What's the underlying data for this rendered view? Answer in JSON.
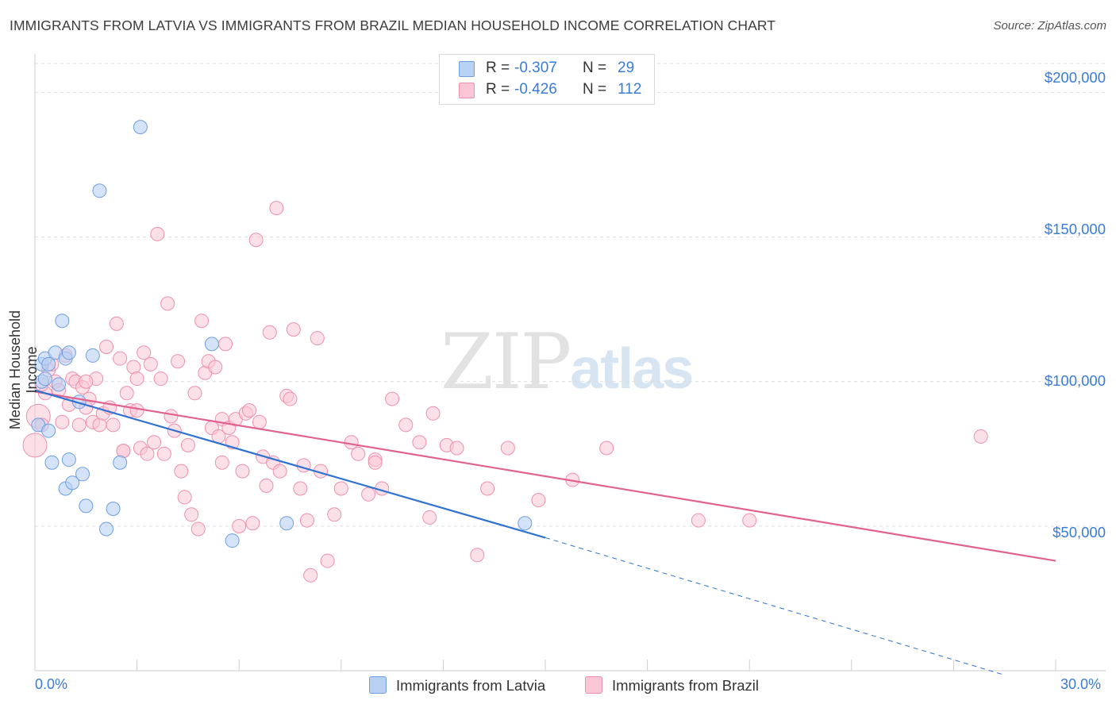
{
  "title": "IMMIGRANTS FROM LATVIA VS IMMIGRANTS FROM BRAZIL MEDIAN HOUSEHOLD INCOME CORRELATION CHART",
  "source": "Source: ZipAtlas.com",
  "watermark": {
    "zip": "ZIP",
    "atlas": "atlas"
  },
  "legend": {
    "latvia": {
      "r_label": "R = ",
      "r_value": "-0.307",
      "n_label": "N = ",
      "n_value": "29"
    },
    "brazil": {
      "r_label": "R = ",
      "r_value": "-0.426",
      "n_label": "N = ",
      "n_value": "112"
    }
  },
  "colors": {
    "latvia_fill": "#b8d1f3",
    "latvia_stroke": "#6e9fe0",
    "latvia_line": "#2f72d0",
    "brazil_fill": "#f9c6d6",
    "brazil_stroke": "#ee8fae",
    "brazil_line": "#e2628f",
    "tick_text": "#3a7bd5",
    "grid": "#dddddd"
  },
  "chart_data": {
    "type": "scatter",
    "title": "IMMIGRANTS FROM LATVIA VS IMMIGRANTS FROM BRAZIL MEDIAN HOUSEHOLD INCOME CORRELATION CHART",
    "xlabel": "",
    "ylabel": "Median Household Income",
    "xlim": [
      0,
      30
    ],
    "ylim": [
      0,
      210000
    ],
    "x_tick_labels": [
      "0.0%",
      "30.0%"
    ],
    "y_ticks": [
      {
        "value": 50000,
        "label": "$50,000"
      },
      {
        "value": 100000,
        "label": "$100,000"
      },
      {
        "value": 150000,
        "label": "$150,000"
      },
      {
        "value": 200000,
        "label": "$200,000"
      }
    ],
    "grid": true,
    "legend_position": "top-center",
    "series": [
      {
        "name": "Immigrants from Latvia",
        "points": [
          [
            0.1,
            85000
          ],
          [
            0.2,
            106000
          ],
          [
            0.2,
            100000
          ],
          [
            0.3,
            108000
          ],
          [
            0.4,
            106000
          ],
          [
            0.4,
            83000
          ],
          [
            0.5,
            72000
          ],
          [
            0.6,
            110000
          ],
          [
            0.7,
            99000
          ],
          [
            0.8,
            121000
          ],
          [
            0.9,
            108000
          ],
          [
            0.9,
            63000
          ],
          [
            1.0,
            110000
          ],
          [
            1.0,
            73000
          ],
          [
            1.1,
            65000
          ],
          [
            1.3,
            93000
          ],
          [
            1.4,
            68000
          ],
          [
            1.5,
            57000
          ],
          [
            1.7,
            109000
          ],
          [
            1.9,
            166000
          ],
          [
            2.1,
            49000
          ],
          [
            2.3,
            56000
          ],
          [
            2.5,
            72000
          ],
          [
            3.1,
            188000
          ],
          [
            5.2,
            113000
          ],
          [
            5.8,
            45000
          ],
          [
            7.4,
            51000
          ],
          [
            14.4,
            51000
          ],
          [
            0.3,
            101000
          ]
        ],
        "trend": {
          "x1": 0,
          "y1": 97000,
          "x2": 15.0,
          "y2": 46000,
          "dashed_to_x": 28.5,
          "dashed_to_y": -1500
        }
      },
      {
        "name": "Immigrants from Brazil",
        "points": [
          [
            0.0,
            78000
          ],
          [
            0.1,
            88000
          ],
          [
            0.2,
            85000
          ],
          [
            0.3,
            96000
          ],
          [
            0.4,
            104000
          ],
          [
            0.5,
            106000
          ],
          [
            0.6,
            100000
          ],
          [
            0.7,
            97000
          ],
          [
            0.8,
            86000
          ],
          [
            0.9,
            109000
          ],
          [
            1.0,
            92000
          ],
          [
            1.1,
            101000
          ],
          [
            1.2,
            100000
          ],
          [
            1.3,
            85000
          ],
          [
            1.4,
            98000
          ],
          [
            1.5,
            91000
          ],
          [
            1.6,
            94000
          ],
          [
            1.7,
            86000
          ],
          [
            1.8,
            101000
          ],
          [
            1.9,
            85000
          ],
          [
            2.0,
            89000
          ],
          [
            2.1,
            112000
          ],
          [
            2.2,
            91000
          ],
          [
            2.3,
            85000
          ],
          [
            2.4,
            120000
          ],
          [
            2.5,
            108000
          ],
          [
            2.6,
            76000
          ],
          [
            2.7,
            96000
          ],
          [
            2.8,
            90000
          ],
          [
            2.9,
            105000
          ],
          [
            3.0,
            101000
          ],
          [
            3.1,
            77000
          ],
          [
            3.2,
            110000
          ],
          [
            3.3,
            75000
          ],
          [
            3.4,
            106000
          ],
          [
            3.5,
            79000
          ],
          [
            3.6,
            151000
          ],
          [
            3.7,
            101000
          ],
          [
            3.8,
            75000
          ],
          [
            3.9,
            127000
          ],
          [
            4.0,
            88000
          ],
          [
            4.1,
            83000
          ],
          [
            4.2,
            107000
          ],
          [
            4.3,
            69000
          ],
          [
            4.4,
            60000
          ],
          [
            4.5,
            78000
          ],
          [
            4.6,
            54000
          ],
          [
            4.7,
            96000
          ],
          [
            4.8,
            49000
          ],
          [
            4.9,
            121000
          ],
          [
            5.0,
            103000
          ],
          [
            5.1,
            107000
          ],
          [
            5.2,
            84000
          ],
          [
            5.3,
            105000
          ],
          [
            5.4,
            81000
          ],
          [
            5.5,
            87000
          ],
          [
            5.6,
            113000
          ],
          [
            5.7,
            84000
          ],
          [
            5.8,
            79000
          ],
          [
            5.9,
            87000
          ],
          [
            6.0,
            50000
          ],
          [
            6.1,
            69000
          ],
          [
            6.2,
            89000
          ],
          [
            6.3,
            90000
          ],
          [
            6.4,
            51000
          ],
          [
            6.5,
            149000
          ],
          [
            6.6,
            86000
          ],
          [
            6.7,
            74000
          ],
          [
            6.8,
            64000
          ],
          [
            6.9,
            117000
          ],
          [
            7.0,
            72000
          ],
          [
            7.1,
            160000
          ],
          [
            7.2,
            69000
          ],
          [
            7.4,
            95000
          ],
          [
            7.5,
            94000
          ],
          [
            7.6,
            118000
          ],
          [
            7.8,
            63000
          ],
          [
            7.9,
            71000
          ],
          [
            8.0,
            52000
          ],
          [
            8.1,
            33000
          ],
          [
            8.3,
            115000
          ],
          [
            8.4,
            69000
          ],
          [
            8.6,
            38000
          ],
          [
            8.8,
            54000
          ],
          [
            9.0,
            63000
          ],
          [
            9.3,
            79000
          ],
          [
            9.8,
            61000
          ],
          [
            10.0,
            73000
          ],
          [
            10.2,
            63000
          ],
          [
            10.5,
            94000
          ],
          [
            10.9,
            85000
          ],
          [
            11.3,
            79000
          ],
          [
            11.6,
            53000
          ],
          [
            11.7,
            89000
          ],
          [
            12.1,
            78000
          ],
          [
            12.4,
            77000
          ],
          [
            13.0,
            40000
          ],
          [
            13.3,
            63000
          ],
          [
            13.9,
            77000
          ],
          [
            14.8,
            59000
          ],
          [
            15.8,
            66000
          ],
          [
            16.8,
            77000
          ],
          [
            19.5,
            52000
          ],
          [
            21.0,
            52000
          ],
          [
            27.8,
            81000
          ],
          [
            10.0,
            72000
          ],
          [
            0.2,
            99000
          ],
          [
            1.5,
            100000
          ],
          [
            3.0,
            90000
          ],
          [
            5.5,
            72000
          ],
          [
            9.5,
            75000
          ],
          [
            2.6,
            76000
          ]
        ],
        "trend": {
          "x1": 0,
          "y1": 96500,
          "x2": 30.0,
          "y2": 38000
        }
      }
    ]
  },
  "bottom_legend": {
    "latvia": "Immigrants from Latvia",
    "brazil": "Immigrants from Brazil"
  }
}
